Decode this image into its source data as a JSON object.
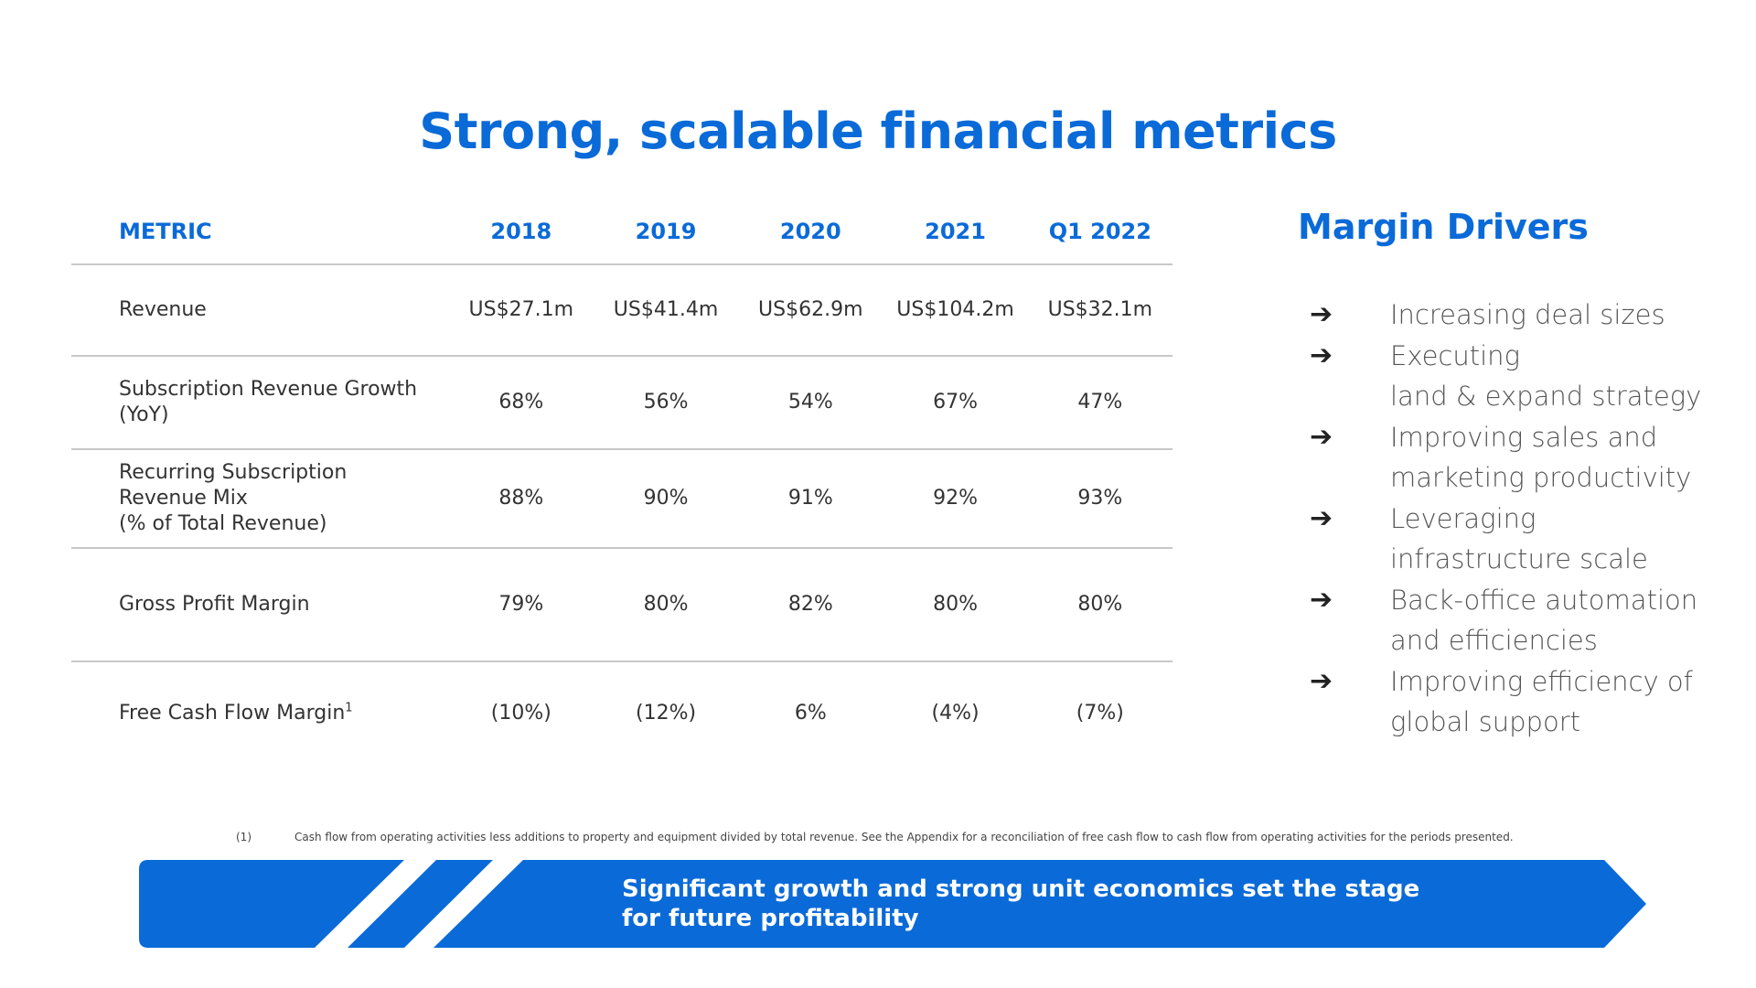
{
  "slide": {
    "title": "Strong, scalable financial metrics",
    "accent_color": "#0a6ad8"
  },
  "table": {
    "headers": [
      "METRIC",
      "2018",
      "2019",
      "2020",
      "2021",
      "Q1 2022"
    ],
    "rows": [
      {
        "metric": "Revenue",
        "values": [
          "US$27.1m",
          "US$41.4m",
          "US$62.9m",
          "US$104.2m",
          "US$32.1m"
        ]
      },
      {
        "metric": "Subscription Revenue Growth\n(YoY)",
        "values": [
          "68%",
          "56%",
          "54%",
          "67%",
          "47%"
        ]
      },
      {
        "metric": "Recurring Subscription\nRevenue Mix\n(% of Total Revenue)",
        "values": [
          "88%",
          "90%",
          "91%",
          "92%",
          "93%"
        ]
      },
      {
        "metric": "Gross Profit Margin",
        "values": [
          "79%",
          "80%",
          "82%",
          "80%",
          "80%"
        ]
      },
      {
        "metric": "Free Cash Flow Margin",
        "footnote_ref": "1",
        "values": [
          "(10%)",
          "(12%)",
          "6%",
          "(4%)",
          "(7%)"
        ]
      }
    ]
  },
  "margin_drivers": {
    "title": "Margin Drivers",
    "icon": "right-arrow-icon",
    "items": [
      "Increasing deal sizes",
      "Executing\nland & expand strategy",
      "Improving sales and\nmarketing productivity",
      "Leveraging\ninfrastructure scale",
      "Back-office automation\nand efficiencies",
      "Improving efficiency of\nglobal support"
    ]
  },
  "footnote": {
    "number": "(1)",
    "text": "Cash flow from operating activities less additions to property and equipment divided by total revenue. See the Appendix for a reconciliation of free cash flow to cash flow from operating activities for the periods presented."
  },
  "banner": {
    "text": "Significant growth and strong unit economics set the stage\nfor future  profitability",
    "color": "#0a6ad8"
  }
}
